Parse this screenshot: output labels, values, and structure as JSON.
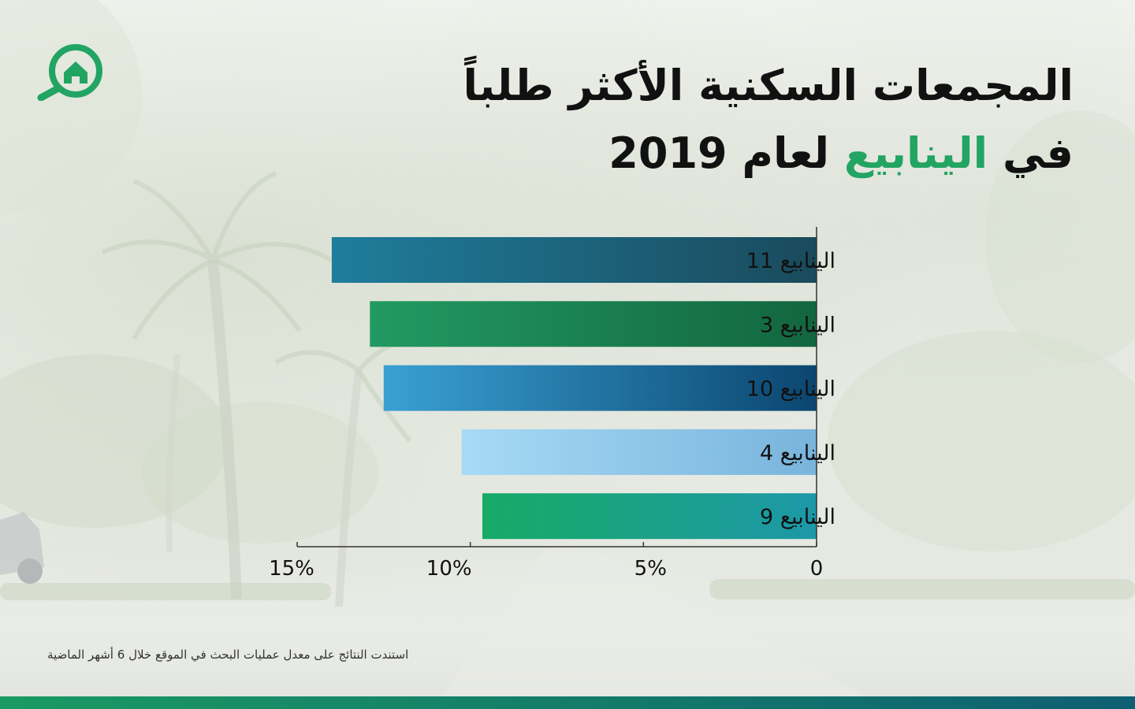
{
  "title": {
    "line1": "المجمعات السكنية الأكثر طلباً",
    "line2_prefix": "في",
    "line2_highlight": "الينابيع",
    "line2_suffix": "لعام 2019"
  },
  "footnote": "استندت النتائج على معدل عمليات البحث في الموقع خلال 6 أشهر الماضية",
  "chart_data": {
    "type": "bar",
    "orientation": "horizontal",
    "x_direction": "right-to-left",
    "title": "",
    "xlabel": "",
    "ylabel": "",
    "xlim": [
      0,
      15
    ],
    "grid": false,
    "legend": "none",
    "categories": [
      "الينابيع 11",
      "الينابيع 3",
      "الينابيع 10",
      "الينابيع 4",
      "الينابيع 9"
    ],
    "values": [
      14,
      12.9,
      12.5,
      10.25,
      9.65
    ],
    "x_ticks": [
      0,
      5,
      10,
      15
    ],
    "x_tick_labels": [
      "0",
      "5%",
      "10%",
      "15%"
    ],
    "bar_colors": [
      [
        "#1f7d9c",
        "#1a4a5c"
      ],
      [
        "#229a62",
        "#13663f"
      ],
      [
        "#3aa0d3",
        "#0b4670"
      ],
      [
        "#a7daf5",
        "#78b4dc"
      ],
      [
        "#18aa66",
        "#1c98a8"
      ]
    ]
  },
  "colors": {
    "accent": "#22a463",
    "bottom_bar": "#137a6a"
  }
}
